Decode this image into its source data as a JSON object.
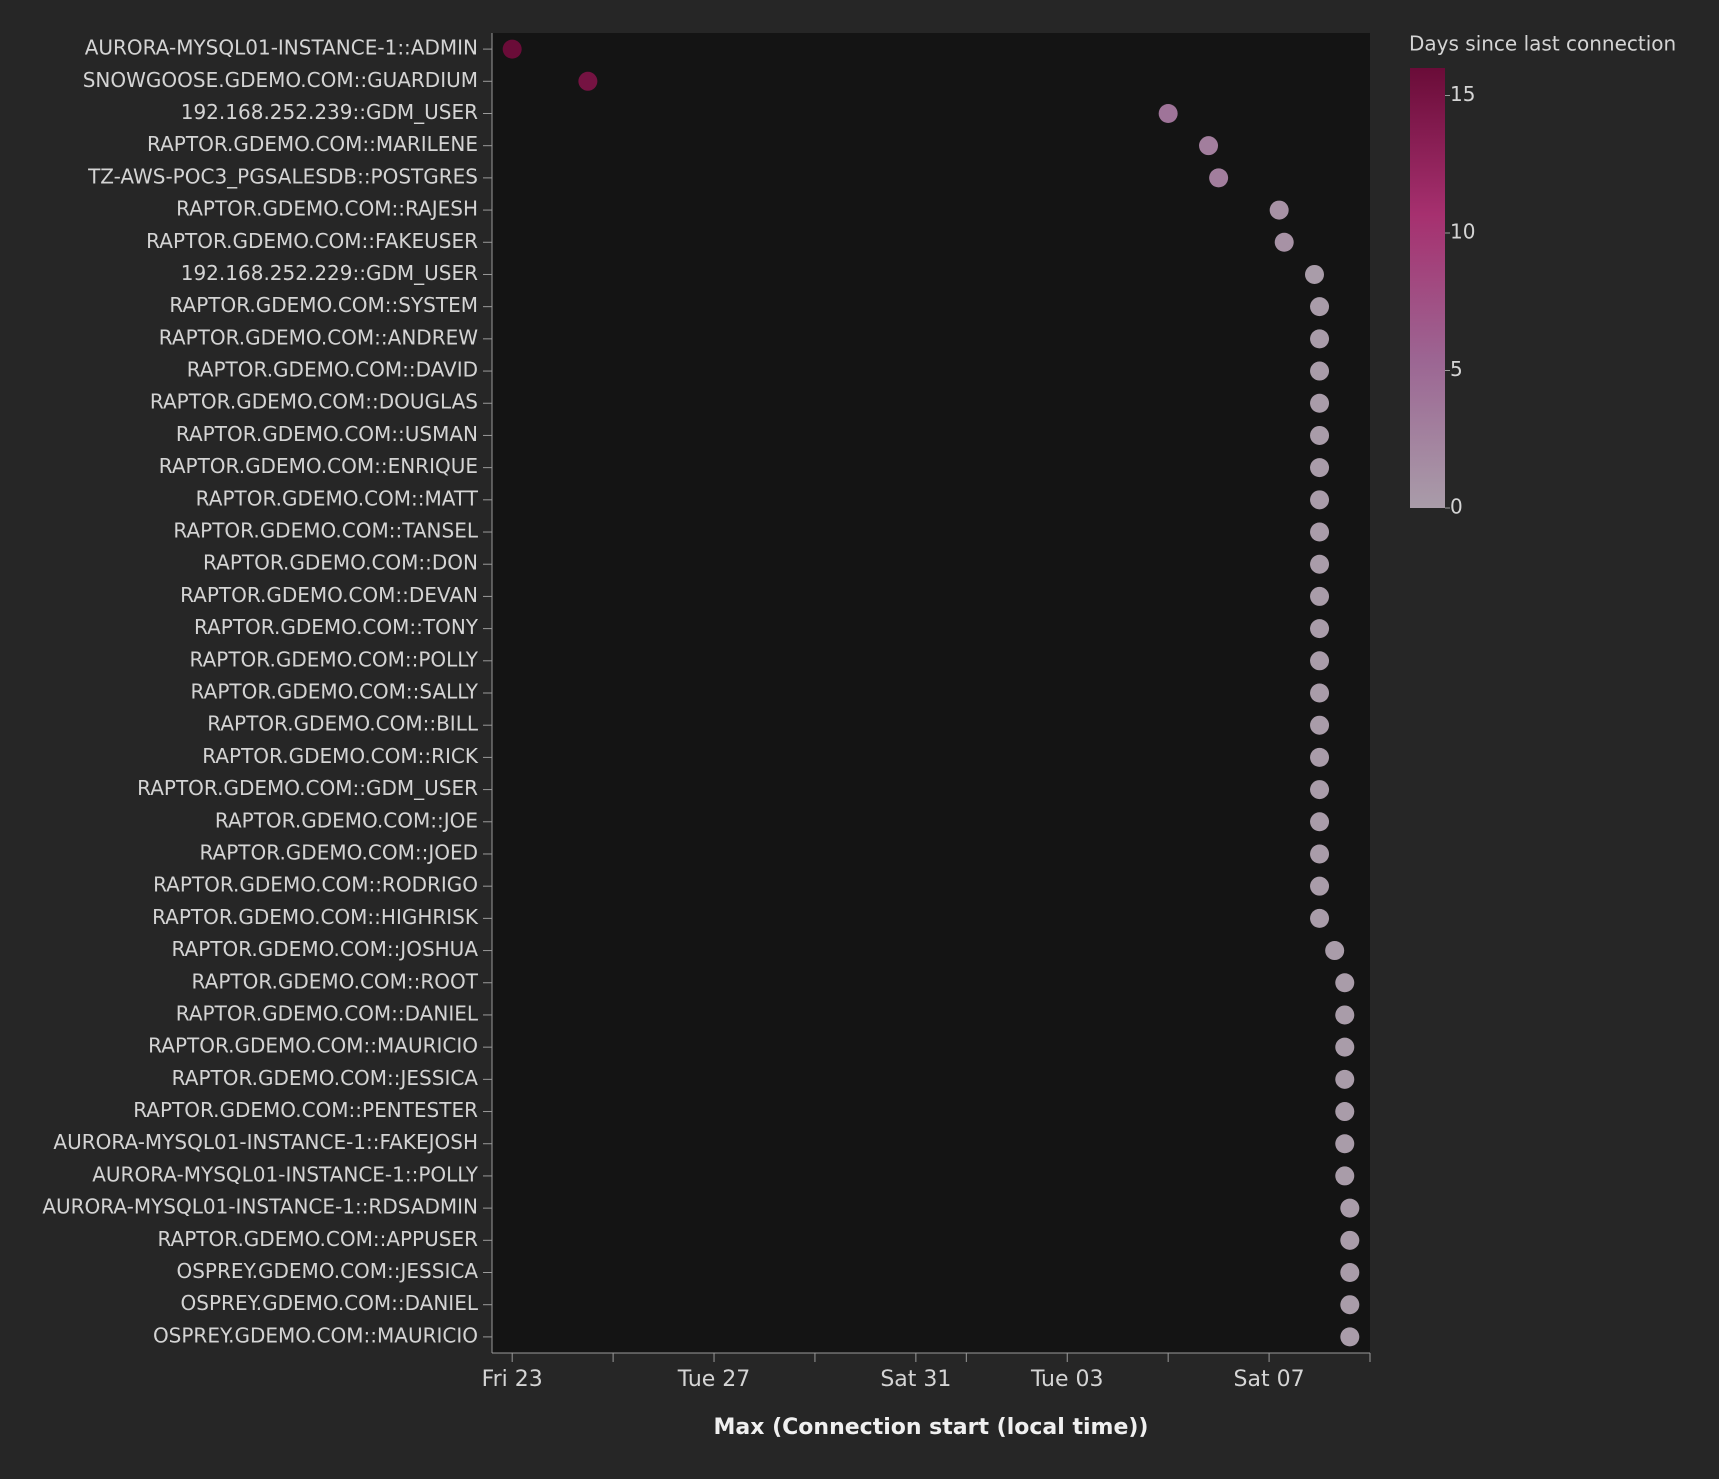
{
  "chart_data": {
    "type": "scatter",
    "x_label": "Max (Connection start (local time))",
    "color_title": "Days since last connection",
    "categories": [
      "AURORA-MYSQL01-INSTANCE-1::ADMIN",
      "SNOWGOOSE.GDEMO.COM::GUARDIUM",
      "192.168.252.239::GDM_USER",
      "RAPTOR.GDEMO.COM::MARILENE",
      "TZ-AWS-POC3_PGSALESDB::POSTGRES",
      "RAPTOR.GDEMO.COM::RAJESH",
      "RAPTOR.GDEMO.COM::FAKEUSER",
      "192.168.252.229::GDM_USER",
      "RAPTOR.GDEMO.COM::SYSTEM",
      "RAPTOR.GDEMO.COM::ANDREW",
      "RAPTOR.GDEMO.COM::DAVID",
      "RAPTOR.GDEMO.COM::DOUGLAS",
      "RAPTOR.GDEMO.COM::USMAN",
      "RAPTOR.GDEMO.COM::ENRIQUE",
      "RAPTOR.GDEMO.COM::MATT",
      "RAPTOR.GDEMO.COM::TANSEL",
      "RAPTOR.GDEMO.COM::DON",
      "RAPTOR.GDEMO.COM::DEVAN",
      "RAPTOR.GDEMO.COM::TONY",
      "RAPTOR.GDEMO.COM::POLLY",
      "RAPTOR.GDEMO.COM::SALLY",
      "RAPTOR.GDEMO.COM::BILL",
      "RAPTOR.GDEMO.COM::RICK",
      "RAPTOR.GDEMO.COM::GDM_USER",
      "RAPTOR.GDEMO.COM::JOE",
      "RAPTOR.GDEMO.COM::JOED",
      "RAPTOR.GDEMO.COM::RODRIGO",
      "RAPTOR.GDEMO.COM::HIGHRISK",
      "RAPTOR.GDEMO.COM::JOSHUA",
      "RAPTOR.GDEMO.COM::ROOT",
      "RAPTOR.GDEMO.COM::DANIEL",
      "RAPTOR.GDEMO.COM::MAURICIO",
      "RAPTOR.GDEMO.COM::JESSICA",
      "RAPTOR.GDEMO.COM::PENTESTER",
      "AURORA-MYSQL01-INSTANCE-1::FAKEJOSH",
      "AURORA-MYSQL01-INSTANCE-1::POLLY",
      "AURORA-MYSQL01-INSTANCE-1::RDSADMIN",
      "RAPTOR.GDEMO.COM::APPUSER",
      "OSPREY.GDEMO.COM::JESSICA",
      "OSPREY.GDEMO.COM::DANIEL",
      "OSPREY.GDEMO.COM::MAURICIO"
    ],
    "x": [
      23.0,
      24.5,
      36.0,
      36.8,
      37.0,
      38.2,
      38.3,
      38.9,
      39.0,
      39.0,
      39.0,
      39.0,
      39.0,
      39.0,
      39.0,
      39.0,
      39.0,
      39.0,
      39.0,
      39.0,
      39.0,
      39.0,
      39.0,
      39.0,
      39.0,
      39.0,
      39.0,
      39.0,
      39.3,
      39.5,
      39.5,
      39.5,
      39.5,
      39.5,
      39.5,
      39.5,
      39.6,
      39.6,
      39.6,
      39.6,
      39.6
    ],
    "values": [
      16,
      15,
      4,
      3,
      3,
      1,
      1,
      0,
      0,
      0,
      0,
      0,
      0,
      0,
      0,
      0,
      0,
      0,
      0,
      0,
      0,
      0,
      0,
      0,
      0,
      0,
      0,
      0,
      0,
      0,
      0,
      0,
      0,
      0,
      0,
      0,
      0,
      0,
      0,
      0,
      0
    ],
    "xlim": [
      22.6,
      40.0
    ],
    "xticks": [
      {
        "value": 23,
        "label": "Fri 23"
      },
      {
        "value": 25,
        "label": null
      },
      {
        "value": 27,
        "label": "Tue 27"
      },
      {
        "value": 29,
        "label": null
      },
      {
        "value": 31,
        "label": "Sat 31"
      },
      {
        "value": 32,
        "label": null
      },
      {
        "value": 34,
        "label": "Tue 03"
      },
      {
        "value": 36,
        "label": null
      },
      {
        "value": 38,
        "label": "Sat 07"
      },
      {
        "value": 40,
        "label": null
      }
    ],
    "color_lim": [
      0,
      16
    ],
    "color_ticks": [
      0,
      5,
      10,
      15
    ],
    "color_scale": [
      "#a99ca9",
      "#9c6693",
      "#a6306f",
      "#6a0c38"
    ]
  }
}
